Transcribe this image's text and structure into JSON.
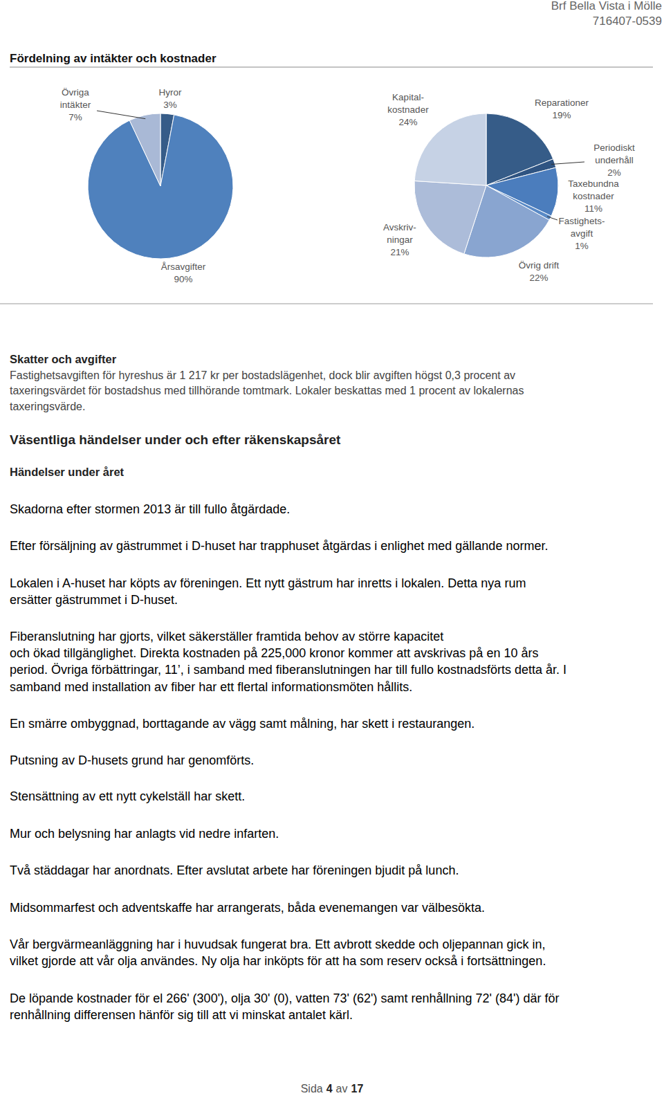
{
  "chart_data": [
    {
      "type": "pie",
      "categories": [
        "Hyror",
        "Årsavgifter",
        "Övriga\nintäkter"
      ],
      "values": [
        3,
        90,
        7
      ],
      "value_labels": [
        "3%",
        "90%",
        "7%"
      ],
      "colors": [
        "#365c88",
        "#4f81bd",
        "#a9b9d6"
      ],
      "data_labels": true
    },
    {
      "type": "pie",
      "categories": [
        "Reparationer",
        "Periodiskt\nunderhåll",
        "Taxebundna\nkostnader",
        "Fastighets-\navgift",
        "Övrig drift",
        "Avskriv-\nningar",
        "Kapital-\nkostnader"
      ],
      "values": [
        19,
        2,
        11,
        1,
        22,
        21,
        24
      ],
      "value_labels": [
        "19%",
        "2%",
        "11%",
        "1%",
        "22%",
        "21%",
        "24%"
      ],
      "colors": [
        "#365c88",
        "#2f5482",
        "#4b7dbd",
        "#5a8ac6",
        "#89a5d0",
        "#acbcd9",
        "#c6d2e5"
      ],
      "data_labels": true
    }
  ],
  "document": {
    "header": {
      "name": "Brf Bella Vista i Mölle",
      "org_number": "716407-0539"
    },
    "section_title": "Fördelning av intäkter och kostnader",
    "taxes": {
      "heading": "Skatter och avgifter",
      "lines": [
        "Fastighetsavgiften för hyreshus är 1 217 kr per bostadslägenhet, dock blir avgiften högst 0,3 procent av",
        "taxeringsvärdet för bostadshus med tillhörande tomtmark. Lokaler beskattas med 1 procent av lokalernas",
        "taxeringsvärde."
      ]
    },
    "events": {
      "heading": "Väsentliga händelser under och efter räkenskapsåret",
      "subheading": "Händelser under året",
      "paragraphs": [
        [
          "Skadorna efter stormen 2013 är till fullo åtgärdade."
        ],
        [
          "Efter försäljning av gästrummet i D-huset har trapphuset åtgärdas i enlighet med gällande normer."
        ],
        [
          "Lokalen i A-huset har köpts av föreningen. Ett nytt gästrum har inretts i lokalen. Detta nya rum",
          "ersätter gästrummet i D-huset."
        ],
        [
          "Fiberanslutning har gjorts, vilket säkerställer framtida behov av större kapacitet",
          "och ökad tillgänglighet. Direkta kostnaden på 225,000 kronor kommer att avskrivas på en 10 års",
          "period. Övriga förbättringar, 11’, i samband med fiberanslutningen har till fullo kostnadsförts detta år. I",
          "samband med installation av fiber har ett flertal informationsmöten hållits."
        ],
        [
          "En smärre ombyggnad, borttagande av vägg samt målning, har skett i restaurangen."
        ],
        [
          "Putsning av D-husets grund har genomförts."
        ],
        [
          "Stensättning av ett nytt cykelställ har skett."
        ],
        [
          "Mur och belysning har anlagts vid nedre infarten."
        ],
        [
          "Två städdagar har anordnats. Efter avslutat arbete har föreningen bjudit på lunch."
        ],
        [
          "Midsommarfest och adventskaffe har arrangerats, båda evenemangen var välbesökta."
        ],
        [
          "Vår bergvärmeanläggning har i huvudsak fungerat bra. Ett avbrott skedde och oljepannan gick in,",
          "vilket gjorde att vår olja användes. Ny olja har inköpts för att ha som reserv också i fortsättningen."
        ],
        [
          "De löpande kostnader för el 266' (300'), olja 30' (0), vatten 73' (62') samt renhållning 72' (84') där för",
          "renhållning differensen hänför sig till att vi minskat antalet kärl."
        ]
      ]
    },
    "footer": {
      "page_word": "Sida",
      "page": 4,
      "of_word": "av",
      "pages": 17
    }
  }
}
